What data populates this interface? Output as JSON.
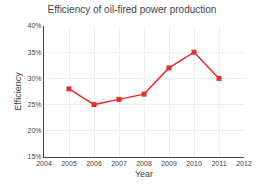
{
  "chart_data": {
    "type": "line",
    "title": "Efficiency of oil-fired power production",
    "xlabel": "Year",
    "ylabel": "Efficiency",
    "x": [
      2005,
      2006,
      2007,
      2008,
      2009,
      2010,
      2011
    ],
    "values": [
      28,
      25,
      26,
      27,
      32,
      35,
      30
    ],
    "xlim": [
      2004,
      2012
    ],
    "ylim": [
      15,
      40
    ],
    "xticks": [
      2004,
      2005,
      2006,
      2007,
      2008,
      2009,
      2010,
      2011,
      2012
    ],
    "yticks": [
      {
        "value": 15,
        "label": "15%"
      },
      {
        "value": 20,
        "label": "20%"
      },
      {
        "value": 25,
        "label": "25%"
      },
      {
        "value": 30,
        "label": "30%"
      },
      {
        "value": 35,
        "label": "35%"
      },
      {
        "value": 40,
        "label": "40%"
      }
    ],
    "color": "#e03030",
    "marker": "square",
    "grid": true
  }
}
